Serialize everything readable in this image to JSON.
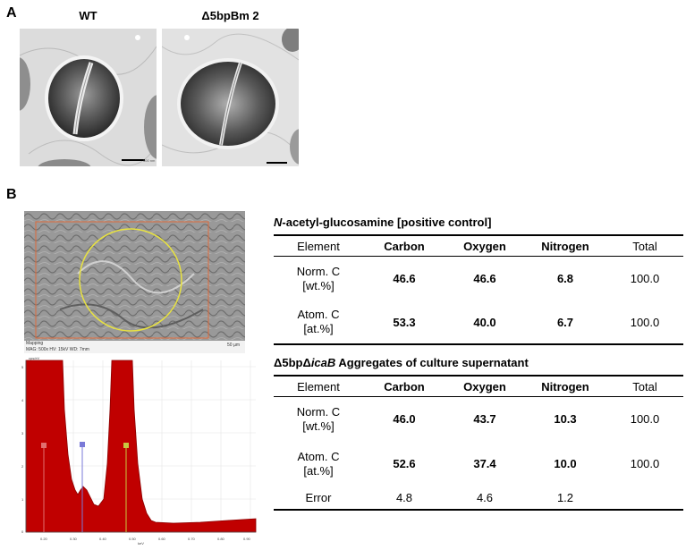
{
  "panel_a": {
    "letter": "A",
    "images": [
      {
        "label": "WT",
        "scalebar_text": "500 nm"
      },
      {
        "label": "Δ5bpBm 2",
        "scalebar_text": ""
      }
    ]
  },
  "panel_b": {
    "letter": "B",
    "sem": {
      "info_line1": "Mapping",
      "info_line2": "MAG: 500x   HV: 15kV   WD: 7mm",
      "scale_text": "50 µm"
    },
    "spectrum": {
      "y_unit": "cps/eV",
      "y_ticks": [
        "5",
        "4",
        "3",
        "2",
        "1",
        "0"
      ],
      "x_ticks": [
        "0.20",
        "0.30",
        "0.40",
        "0.50",
        "0.60",
        "0.70",
        "0.80",
        "0.90"
      ],
      "x_unit": "keV",
      "markers": [
        {
          "symbol": "C",
          "color": "#e07070"
        },
        {
          "symbol": "N",
          "color": "#7a7ad8"
        },
        {
          "symbol": "O",
          "color": "#c8c840"
        }
      ]
    },
    "table1": {
      "title_italic": "N",
      "title_rest": "-acetyl-glucosamine [positive control]",
      "header": [
        "Element",
        "Carbon",
        "Oxygen",
        "Nitrogen",
        "Total"
      ],
      "rows": [
        {
          "label1": "Norm. C",
          "label2": "[wt.%]",
          "carbon": "46.6",
          "oxygen": "46.6",
          "nitrogen": "6.8",
          "total": "100.0"
        },
        {
          "label1": "Atom. C",
          "label2": "[at.%]",
          "carbon": "53.3",
          "oxygen": "40.0",
          "nitrogen": "6.7",
          "total": "100.0"
        }
      ]
    },
    "table2": {
      "title_pre": "Δ5bpΔ",
      "title_italic": "icaB",
      "title_rest": " Aggregates of culture supernatant",
      "header": [
        "Element",
        "Carbon",
        "Oxygen",
        "Nitrogen",
        "Total"
      ],
      "rows": [
        {
          "label1": "Norm. C",
          "label2": "[wt.%]",
          "carbon": "46.0",
          "oxygen": "43.7",
          "nitrogen": "10.3",
          "total": "100.0"
        },
        {
          "label1": "Atom. C",
          "label2": "[at.%]",
          "carbon": "52.6",
          "oxygen": "37.4",
          "nitrogen": "10.0",
          "total": "100.0"
        }
      ],
      "error_row": {
        "label": "Error",
        "carbon": "4.8",
        "oxygen": "4.6",
        "nitrogen": "1.2",
        "total": ""
      }
    }
  }
}
